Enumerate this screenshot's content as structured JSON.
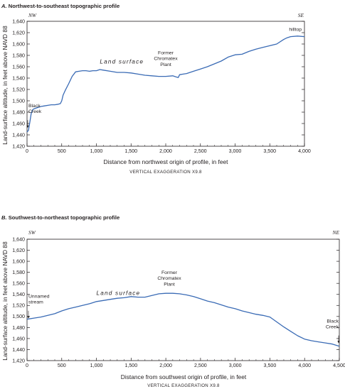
{
  "colors": {
    "profile_line": "#3a6bb5",
    "frame": "#231f20",
    "tick_marks": "#231f20"
  },
  "chart_data": [
    {
      "type": "line",
      "panel_letter": "A.",
      "title": "Northwest-to-southeast topographic profile",
      "xlabel": "Distance from northwest origin of profile, in feet",
      "ylabel": "Land-surface altitude, in feet above NAVD 88",
      "vertical_exaggeration": "VERTICAL EXAGGERATION X9.8",
      "direction_left": "NW",
      "direction_right": "SE",
      "xlim": [
        0,
        4000
      ],
      "ylim": [
        1420,
        1640
      ],
      "x_ticks": [
        0,
        500,
        1000,
        1500,
        2000,
        2500,
        3000,
        3500,
        4000
      ],
      "x_tick_labels": [
        "0",
        "500",
        "1,000",
        "1,500",
        "2,000",
        "2,500",
        "3,000",
        "3,500",
        "4,000"
      ],
      "y_ticks": [
        1420,
        1440,
        1460,
        1480,
        1500,
        1520,
        1540,
        1560,
        1580,
        1600,
        1620,
        1640
      ],
      "y_tick_labels": [
        "1,420",
        "1,440",
        "1,460",
        "1,480",
        "1,500",
        "1,520",
        "1,540",
        "1,560",
        "1,580",
        "1,600",
        "1,620",
        "1,640"
      ],
      "annotations": [
        {
          "lines": [
            "Black",
            "Creek"
          ],
          "x": 10,
          "y": 1451,
          "arrow": true
        },
        {
          "lines": [
            "Land surface"
          ],
          "x": 1050,
          "y": 1557,
          "style": "land-surface"
        },
        {
          "lines": [
            "Former",
            "Chromatex",
            "Plant"
          ],
          "x": 2000,
          "y": 1549
        },
        {
          "lines": [
            "hilltop"
          ],
          "x": 3960,
          "y": 1613
        }
      ],
      "series": [
        {
          "x": [
            0,
            20,
            40,
            60,
            80,
            100,
            150,
            200,
            250,
            300,
            350,
            400,
            450,
            480,
            500,
            520,
            550,
            600,
            650,
            700,
            750,
            800,
            850,
            900,
            950,
            1000,
            1050,
            1100,
            1200,
            1300,
            1400,
            1500,
            1600,
            1700,
            1800,
            1900,
            2000,
            2100,
            2150,
            2180,
            2200,
            2250,
            2300,
            2400,
            2500,
            2600,
            2700,
            2800,
            2900,
            3000,
            3100,
            3200,
            3300,
            3400,
            3500,
            3600,
            3700,
            3750,
            3800,
            3900,
            4000
          ],
          "y": [
            1445,
            1448,
            1462,
            1478,
            1484,
            1486,
            1488,
            1490,
            1491,
            1492,
            1493,
            1493,
            1494,
            1495,
            1500,
            1510,
            1518,
            1530,
            1543,
            1551,
            1552,
            1553,
            1553,
            1552,
            1553,
            1553,
            1555,
            1554,
            1552,
            1550,
            1550,
            1549,
            1547,
            1545,
            1544,
            1543,
            1543,
            1544,
            1542,
            1541,
            1546,
            1547,
            1548,
            1552,
            1556,
            1560,
            1565,
            1570,
            1577,
            1581,
            1582,
            1587,
            1591,
            1594,
            1597,
            1600,
            1608,
            1611,
            1613,
            1614,
            1613
          ]
        }
      ]
    },
    {
      "type": "line",
      "panel_letter": "B.",
      "title": "Southwest-to-northeast topographic profile",
      "xlabel": "Distance from southwest origin of profile, in feet",
      "ylabel": "Land-surface altitude, in feet above NAVD 88",
      "vertical_exaggeration": "VERTICAL EXAGGERATION X9.8",
      "direction_left": "SW",
      "direction_right": "NE",
      "xlim": [
        0,
        4500
      ],
      "ylim": [
        1420,
        1640
      ],
      "x_ticks": [
        0,
        500,
        1000,
        1500,
        2000,
        2500,
        3000,
        3500,
        4000,
        4500
      ],
      "x_tick_labels": [
        "0",
        "500",
        "1,000",
        "1,500",
        "2,000",
        "2,500",
        "3,000",
        "3,500",
        "4,000",
        "4,500"
      ],
      "y_ticks": [
        1420,
        1440,
        1460,
        1480,
        1500,
        1520,
        1540,
        1560,
        1580,
        1600,
        1620,
        1640
      ],
      "y_tick_labels": [
        "1,420",
        "1,440",
        "1,460",
        "1,480",
        "1,500",
        "1,520",
        "1,540",
        "1,560",
        "1,580",
        "1,600",
        "1,620",
        "1,640"
      ],
      "annotations": [
        {
          "lines": [
            "Unnamed",
            "stream"
          ],
          "x": 20,
          "y": 1495,
          "arrow": true
        },
        {
          "lines": [
            "Land surface"
          ],
          "x": 1000,
          "y": 1530,
          "style": "land-surface"
        },
        {
          "lines": [
            "Former",
            "Chromatex",
            "Plant"
          ],
          "x": 2050,
          "y": 1543
        },
        {
          "lines": [
            "Black",
            "Creek"
          ],
          "x": 4490,
          "y": 1450,
          "arrow": true
        }
      ],
      "series": [
        {
          "x": [
            0,
            100,
            200,
            300,
            400,
            500,
            600,
            700,
            800,
            900,
            1000,
            1100,
            1200,
            1300,
            1400,
            1500,
            1600,
            1700,
            1800,
            1900,
            2000,
            2100,
            2200,
            2300,
            2400,
            2500,
            2600,
            2700,
            2800,
            2900,
            3000,
            3100,
            3200,
            3300,
            3400,
            3500,
            3600,
            3700,
            3800,
            3900,
            4000,
            4100,
            4200,
            4300,
            4400,
            4500
          ],
          "y": [
            1495,
            1497,
            1499,
            1502,
            1505,
            1510,
            1514,
            1517,
            1520,
            1523,
            1527,
            1529,
            1531,
            1533,
            1534,
            1536,
            1535,
            1535,
            1538,
            1541,
            1542,
            1542,
            1541,
            1539,
            1536,
            1532,
            1528,
            1525,
            1521,
            1517,
            1514,
            1510,
            1507,
            1504,
            1502,
            1499,
            1490,
            1481,
            1473,
            1465,
            1459,
            1456,
            1454,
            1452,
            1450,
            1446
          ]
        }
      ]
    }
  ]
}
